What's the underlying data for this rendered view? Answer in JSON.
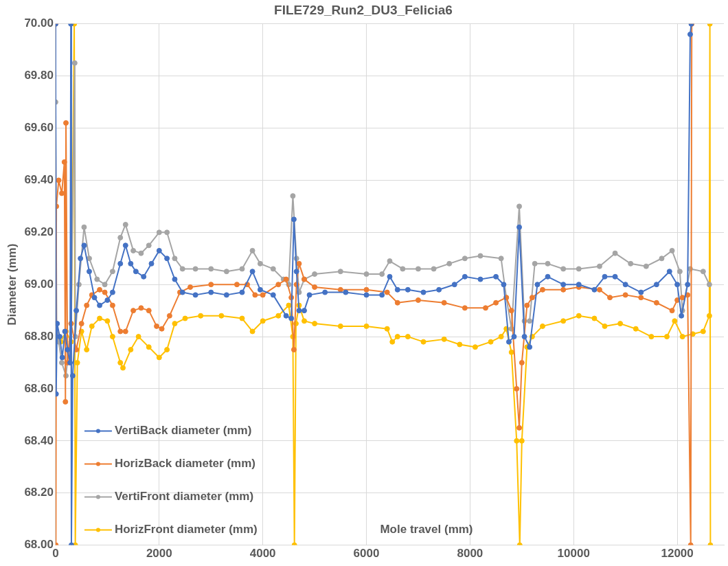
{
  "chart_data": {
    "type": "line",
    "title": "FILE729_Run2_DU3_Felicia6",
    "xlabel": "Mole travel (mm)",
    "ylabel": "Diameter (mm)",
    "xlim": [
      0,
      12900
    ],
    "xticks": [
      0,
      2000,
      4000,
      6000,
      8000,
      10000,
      12000
    ],
    "ylim": [
      68,
      70
    ],
    "yticks": [
      {
        "value": 68,
        "label": "68.00"
      },
      {
        "value": 68.2,
        "label": "68.20"
      },
      {
        "value": 68.4,
        "label": "68.40"
      },
      {
        "value": 68.6,
        "label": "68.60"
      },
      {
        "value": 68.8,
        "label": "68.80"
      },
      {
        "value": 69,
        "label": "69.00"
      },
      {
        "value": 69.2,
        "label": "69.20"
      },
      {
        "value": 69.4,
        "label": "69.40"
      },
      {
        "value": 69.6,
        "label": "69.60"
      },
      {
        "value": 69.8,
        "label": "69.80"
      },
      {
        "value": 70,
        "label": "70.00"
      }
    ],
    "grid": true,
    "legend": "bottom left",
    "marker": "circle",
    "line_style": "solid",
    "series": [
      {
        "name": "VertiBack diameter (mm)",
        "color": "#4472c4",
        "x": [
          0,
          10,
          30,
          80,
          130,
          180,
          230,
          280,
          295,
          305,
          330,
          400,
          480,
          550,
          650,
          750,
          850,
          1000,
          1100,
          1250,
          1350,
          1450,
          1550,
          1700,
          1850,
          2000,
          2150,
          2300,
          2450,
          2700,
          3000,
          3300,
          3600,
          3800,
          3950,
          4200,
          4450,
          4550,
          4600,
          4650,
          4700,
          4800,
          4900,
          5200,
          5600,
          6000,
          6300,
          6450,
          6600,
          6800,
          7100,
          7400,
          7700,
          7900,
          8200,
          8500,
          8650,
          8750,
          8850,
          8950,
          9050,
          9150,
          9300,
          9500,
          9800,
          10100,
          10400,
          10600,
          10800,
          11000,
          11300,
          11600,
          11850,
          12000,
          12080,
          12200,
          12250,
          12270
        ],
        "values": [
          70,
          68.58,
          68.85,
          68.8,
          68.72,
          68.82,
          68.75,
          68.7,
          70,
          68,
          68.65,
          68.9,
          69.1,
          69.15,
          69.05,
          68.95,
          68.92,
          68.94,
          68.97,
          69.08,
          69.15,
          69.08,
          69.05,
          69.03,
          69.08,
          69.13,
          69.1,
          69.02,
          68.97,
          68.96,
          68.97,
          68.96,
          68.97,
          69.05,
          68.98,
          68.96,
          68.88,
          68.87,
          69.25,
          69.05,
          68.9,
          68.9,
          68.96,
          68.97,
          68.97,
          68.96,
          68.96,
          69.03,
          68.98,
          68.98,
          68.97,
          68.98,
          69,
          69.03,
          69.02,
          69.03,
          69,
          68.78,
          68.8,
          69.22,
          68.8,
          68.76,
          69,
          69.03,
          69,
          69,
          68.98,
          69.03,
          69.03,
          69,
          68.97,
          69,
          69.05,
          69,
          68.88,
          69,
          69.96,
          70
        ]
      },
      {
        "name": "HorizBack diameter (mm)",
        "color": "#ed7d31",
        "x": [
          0,
          5,
          15,
          60,
          120,
          170,
          190,
          200,
          230,
          300,
          400,
          500,
          600,
          700,
          850,
          950,
          1100,
          1250,
          1350,
          1500,
          1650,
          1800,
          1950,
          2050,
          2200,
          2400,
          2600,
          3000,
          3500,
          3700,
          3850,
          4000,
          4300,
          4450,
          4550,
          4600,
          4650,
          4700,
          4800,
          5000,
          5500,
          6000,
          6400,
          6600,
          7000,
          7500,
          7900,
          8300,
          8500,
          8700,
          8800,
          8900,
          8950,
          9000,
          9100,
          9200,
          9400,
          9800,
          10100,
          10500,
          10700,
          11000,
          11300,
          11600,
          11900,
          12000,
          12100,
          12200,
          12260,
          12280
        ],
        "values": [
          70,
          68,
          69.3,
          69.4,
          69.35,
          69.47,
          68.55,
          69.62,
          68.7,
          68.85,
          68.75,
          68.85,
          68.92,
          68.96,
          68.98,
          68.97,
          68.92,
          68.82,
          68.82,
          68.9,
          68.91,
          68.9,
          68.84,
          68.83,
          68.88,
          68.97,
          68.99,
          69,
          69,
          69,
          68.96,
          68.96,
          69,
          69.02,
          68.95,
          68.75,
          69,
          69.08,
          69.02,
          68.99,
          68.98,
          68.98,
          68.97,
          68.93,
          68.94,
          68.93,
          68.91,
          68.91,
          68.93,
          68.95,
          68.9,
          68.6,
          68.45,
          68.7,
          68.92,
          68.95,
          68.98,
          68.98,
          68.99,
          68.98,
          68.95,
          68.96,
          68.95,
          68.93,
          68.9,
          68.94,
          68.95,
          68.96,
          68,
          70
        ]
      },
      {
        "name": "VertiFront diameter (mm)",
        "color": "#a5a5a5",
        "x": [
          0,
          20,
          60,
          120,
          200,
          300,
          370,
          380,
          450,
          550,
          650,
          800,
          950,
          1100,
          1250,
          1350,
          1500,
          1650,
          1800,
          2000,
          2150,
          2300,
          2450,
          2700,
          3000,
          3300,
          3600,
          3800,
          3950,
          4200,
          4400,
          4500,
          4580,
          4650,
          4700,
          4800,
          5000,
          5500,
          6000,
          6300,
          6450,
          6700,
          7000,
          7300,
          7600,
          7900,
          8200,
          8600,
          8700,
          8800,
          8950,
          9050,
          9150,
          9250,
          9500,
          9800,
          10100,
          10500,
          10800,
          11100,
          11400,
          11700,
          11900,
          12050,
          12100,
          12250,
          12500,
          12620
        ],
        "values": [
          69.7,
          68.85,
          68.78,
          68.7,
          68.65,
          68.85,
          69.85,
          68.8,
          69,
          69.22,
          69.1,
          69.02,
          69,
          69.05,
          69.18,
          69.23,
          69.13,
          69.12,
          69.15,
          69.2,
          69.2,
          69.1,
          69.06,
          69.06,
          69.06,
          69.05,
          69.06,
          69.13,
          69.08,
          69.06,
          69.02,
          69,
          69.34,
          69.1,
          68.97,
          69.02,
          69.04,
          69.05,
          69.04,
          69.04,
          69.09,
          69.06,
          69.06,
          69.06,
          69.08,
          69.1,
          69.11,
          69.1,
          68.95,
          68.83,
          69.3,
          68.86,
          68.86,
          69.08,
          69.08,
          69.06,
          69.06,
          69.07,
          69.12,
          69.08,
          69.07,
          69.1,
          69.13,
          69.05,
          68.9,
          69.06,
          69.05,
          69
        ]
      },
      {
        "name": "HorizFront diameter (mm)",
        "color": "#ffc000",
        "x": [
          0,
          100,
          200,
          300,
          360,
          380,
          420,
          500,
          600,
          700,
          850,
          1000,
          1100,
          1250,
          1300,
          1450,
          1600,
          1800,
          2000,
          2150,
          2300,
          2500,
          2800,
          3200,
          3600,
          3800,
          4000,
          4300,
          4500,
          4580,
          4610,
          4640,
          4700,
          4800,
          5000,
          5500,
          6000,
          6400,
          6500,
          6600,
          6800,
          7100,
          7500,
          7800,
          8100,
          8400,
          8600,
          8700,
          8800,
          8900,
          8960,
          9000,
          9100,
          9200,
          9400,
          9800,
          10100,
          10400,
          10600,
          10900,
          11200,
          11500,
          11800,
          11950,
          12100,
          12300,
          12500,
          12620,
          12630,
          12640
        ],
        "values": [
          68.8,
          68.78,
          68.82,
          68.78,
          70,
          68,
          68.7,
          68.82,
          68.75,
          68.84,
          68.87,
          68.86,
          68.8,
          68.7,
          68.68,
          68.75,
          68.8,
          68.76,
          68.72,
          68.75,
          68.85,
          68.87,
          68.88,
          68.88,
          68.87,
          68.82,
          68.86,
          68.88,
          68.92,
          68.8,
          68,
          68.85,
          68.92,
          68.86,
          68.85,
          68.84,
          68.84,
          68.83,
          68.78,
          68.8,
          68.8,
          68.78,
          68.79,
          68.77,
          68.76,
          68.78,
          68.8,
          68.83,
          68.74,
          68.4,
          68,
          68.4,
          68.76,
          68.8,
          68.84,
          68.86,
          68.88,
          68.87,
          68.84,
          68.85,
          68.83,
          68.8,
          68.8,
          68.86,
          68.8,
          68.81,
          68.82,
          68.88,
          70,
          68
        ]
      }
    ]
  }
}
